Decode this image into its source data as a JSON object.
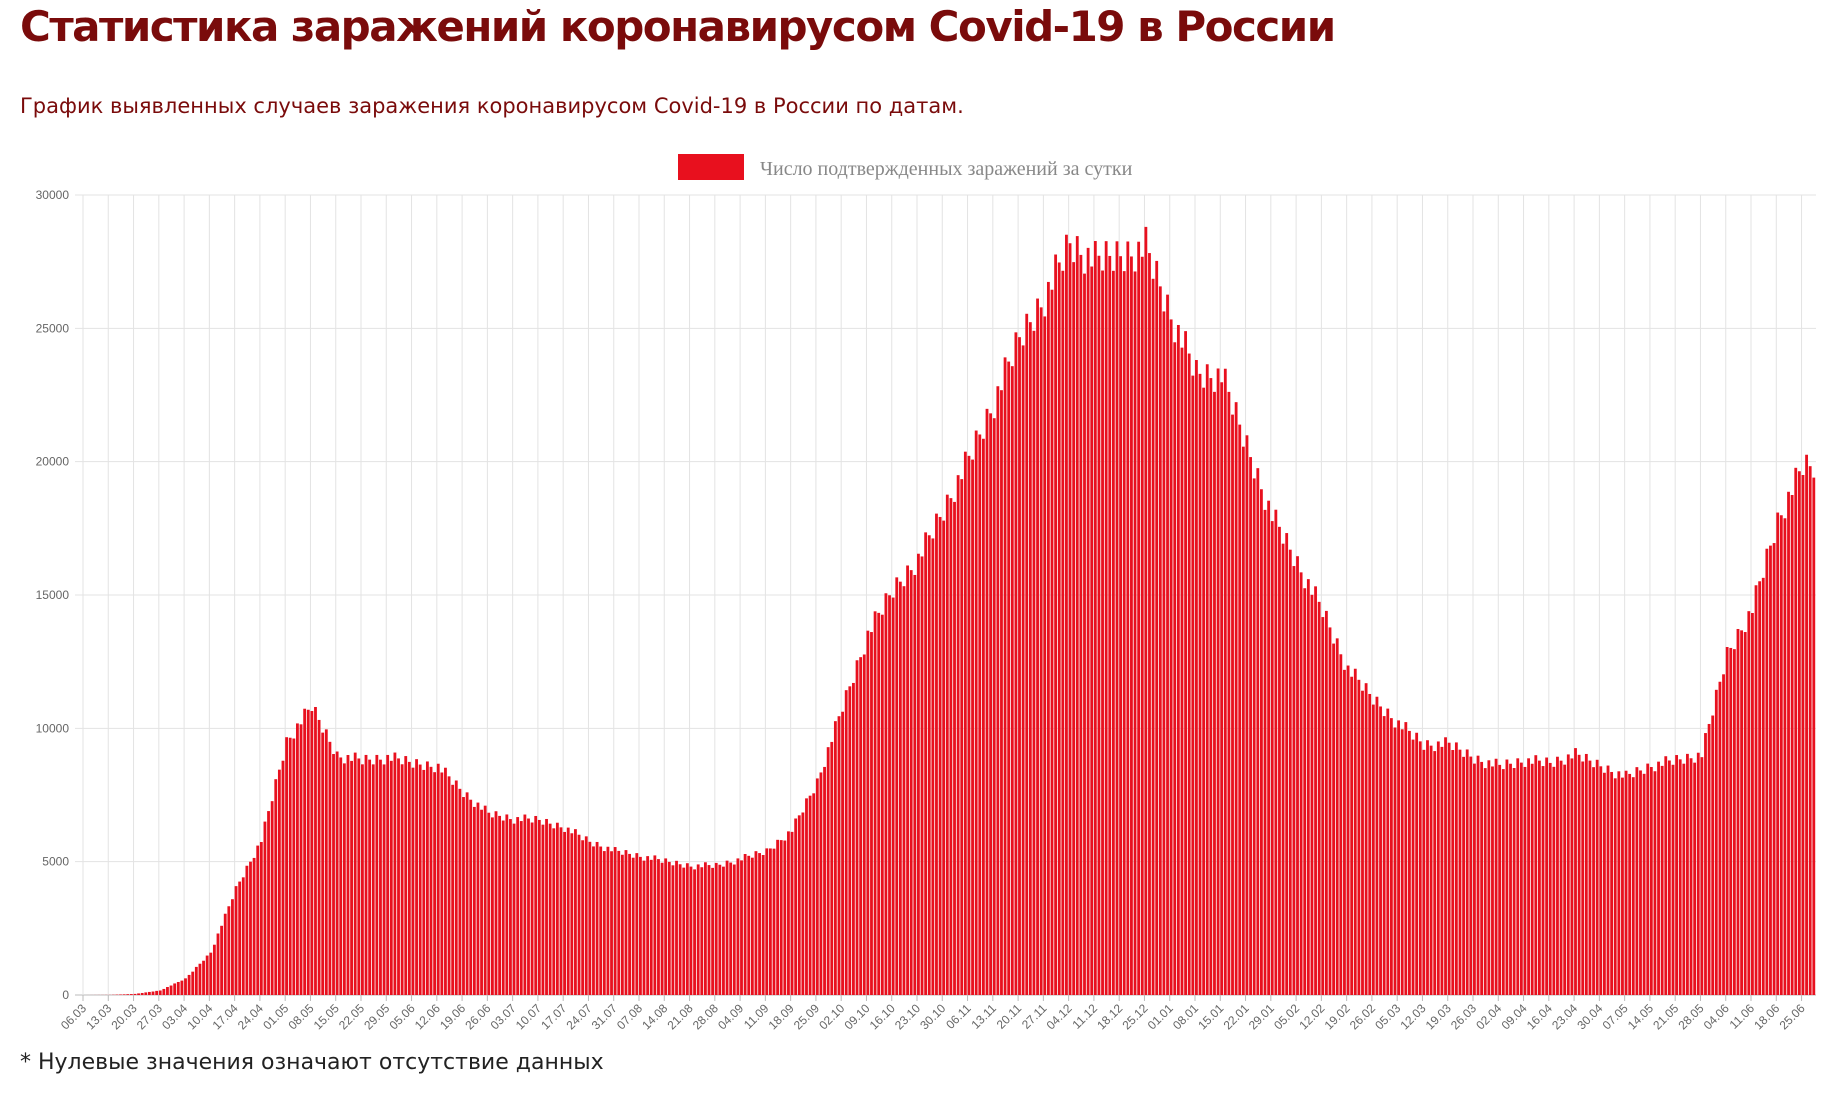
{
  "page": {
    "title": "Статистика заражений коронавирусом Covid-19 в России",
    "subtitle": "График выявленных случаев заражения коронавирусом Covid-19 в России по датам.",
    "footnote": "* Нулевые значения означают отсутствие данных"
  },
  "chart_data": {
    "type": "bar",
    "legend": {
      "label": "Число подтвержденных заражений за сутки",
      "color": "#e8101e",
      "placement": "top-center"
    },
    "bar_color": "#e8101e",
    "ylim": [
      0,
      30000
    ],
    "yticks": [
      0,
      5000,
      10000,
      15000,
      20000,
      25000,
      30000
    ],
    "grid": true,
    "x_tick_labels": [
      "06.03",
      "13.03",
      "20.03",
      "27.03",
      "03.04",
      "10.04",
      "17.04",
      "24.04",
      "01.05",
      "08.05",
      "15.05",
      "22.05",
      "29.05",
      "05.06",
      "12.06",
      "19.06",
      "26.06",
      "03.07",
      "10.07",
      "17.07",
      "24.07",
      "31.07",
      "07.08",
      "14.08",
      "21.08",
      "28.08",
      "04.09",
      "11.09",
      "18.09",
      "25.09",
      "02.10",
      "09.10",
      "16.10",
      "23.10",
      "30.10",
      "06.11",
      "13.11",
      "20.11",
      "27.11",
      "04.12",
      "11.12",
      "18.12",
      "25.12",
      "01.01",
      "08.01",
      "15.01",
      "22.01",
      "29.01",
      "05.02",
      "12.02",
      "19.02",
      "26.02",
      "05.03",
      "12.03",
      "19.03",
      "26.03",
      "02.04",
      "09.04",
      "16.04",
      "23.04",
      "30.04",
      "07.05",
      "14.05",
      "21.05",
      "28.05",
      "04.06",
      "11.06",
      "18.06",
      "25.06"
    ],
    "weekly_values": [
      0,
      5,
      40,
      170,
      610,
      1600,
      4000,
      5800,
      9500,
      10800,
      9000,
      8800,
      8900,
      8700,
      8600,
      7600,
      6800,
      6600,
      6550,
      6300,
      5750,
      5400,
      5200,
      5000,
      4850,
      4850,
      5100,
      5400,
      6200,
      8000,
      10800,
      13500,
      15200,
      16400,
      18200,
      20100,
      22200,
      24600,
      26200,
      28200,
      27500,
      27800,
      28100,
      25500,
      23300,
      23200,
      20600,
      18000,
      16200,
      14400,
      12200,
      11100,
      10200,
      9400,
      9400,
      8900,
      8600,
      8800,
      8700,
      9000,
      8600,
      8200,
      8600,
      8800,
      9000,
      12800,
      14500,
      17800,
      19800
    ],
    "bars_per_label": 7,
    "total_bars": 480
  }
}
